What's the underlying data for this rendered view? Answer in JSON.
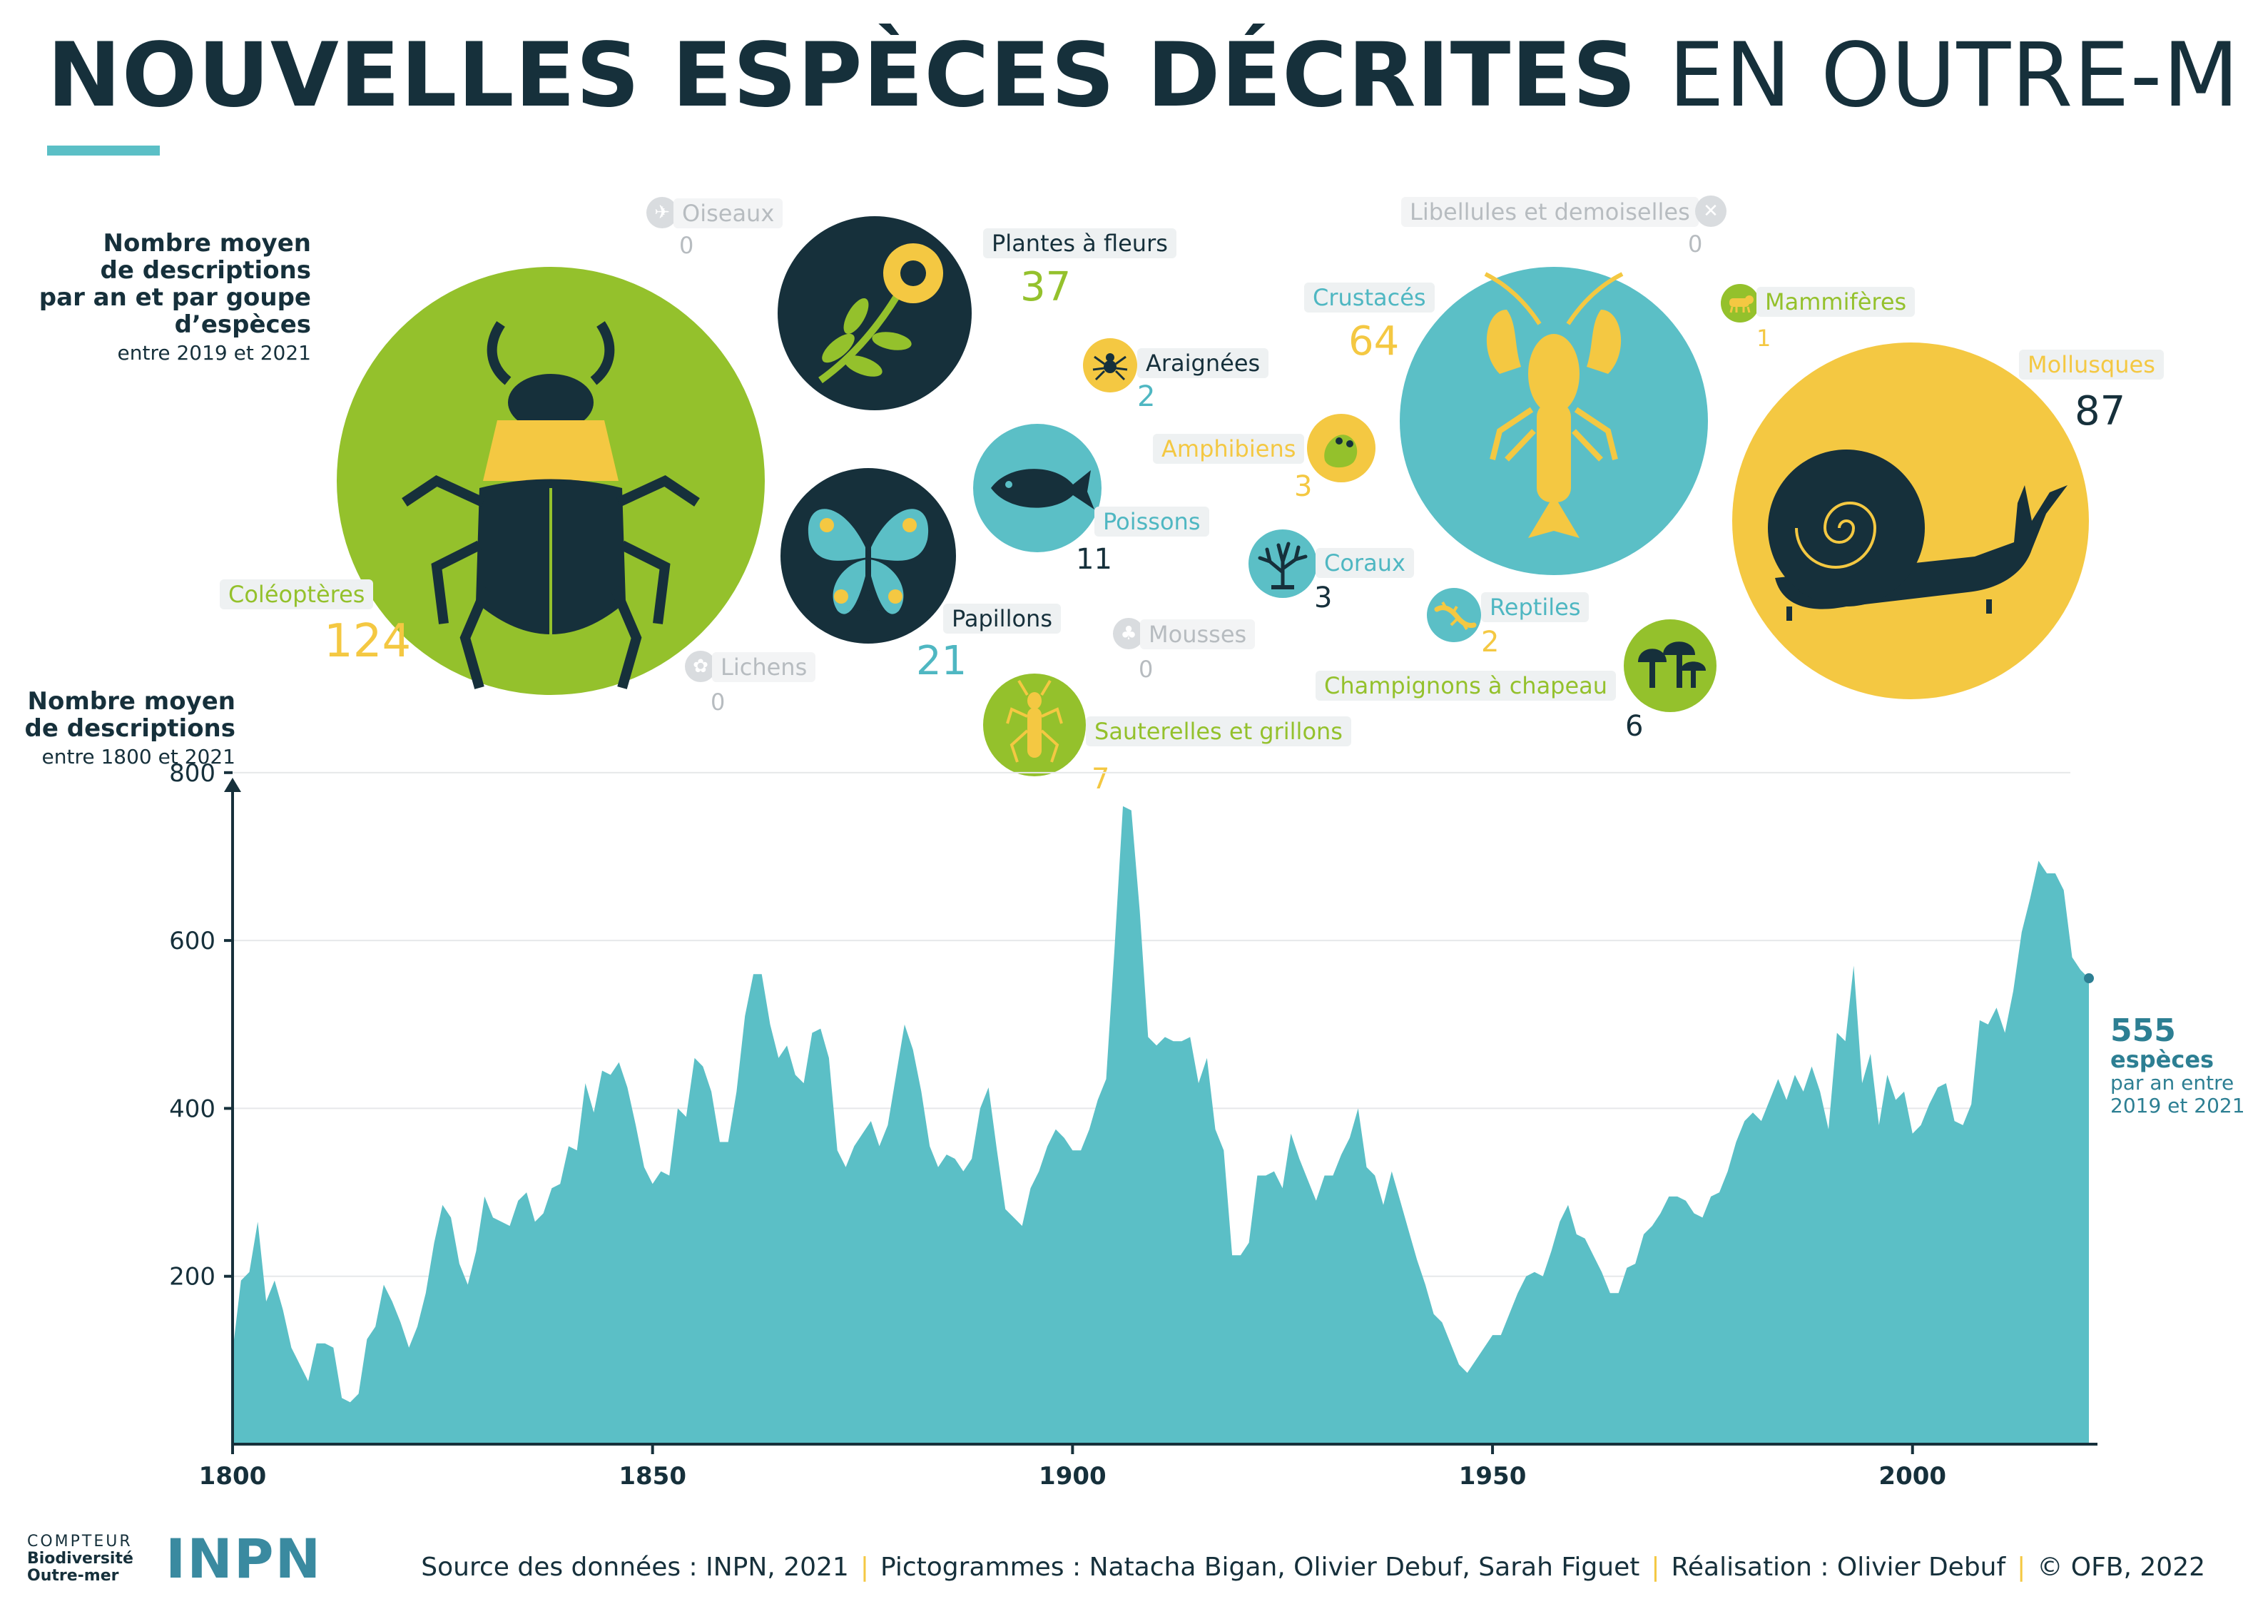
{
  "title": {
    "bold": "NOUVELLES ESPÈCES DÉCRITES",
    "light": "EN OUTRE-MER"
  },
  "bubbles_note": {
    "lines": [
      "Nombre moyen",
      "de descriptions",
      "par an et par goupe",
      "d’espèces"
    ],
    "sub": "entre 2019 et 2021"
  },
  "groups": [
    {
      "name": "Coléoptères",
      "value": "124"
    },
    {
      "name": "Plantes à fleurs",
      "value": "37"
    },
    {
      "name": "Papillons",
      "value": "21"
    },
    {
      "name": "Poissons",
      "value": "11"
    },
    {
      "name": "Araignées",
      "value": "2"
    },
    {
      "name": "Amphibiens",
      "value": "3"
    },
    {
      "name": "Coraux",
      "value": "3"
    },
    {
      "name": "Sauterelles et grillons",
      "value": "7"
    },
    {
      "name": "Oiseaux",
      "value": "0"
    },
    {
      "name": "Lichens",
      "value": "0"
    },
    {
      "name": "Mousses",
      "value": "0"
    },
    {
      "name": "Crustacés",
      "value": "64"
    },
    {
      "name": "Libellules et demoiselles",
      "value": "0"
    },
    {
      "name": "Mammifères",
      "value": "1"
    },
    {
      "name": "Mollusques",
      "value": "87"
    },
    {
      "name": "Reptiles",
      "value": "2"
    },
    {
      "name": "Champignons à chapeau",
      "value": "6"
    }
  ],
  "colors": {
    "green": "#94c12c",
    "yellow": "#f4c842",
    "teal": "#5bbfc6",
    "dark": "#16303b",
    "grey": "#d9dcdf"
  },
  "icons": [
    "beetle-icon",
    "flower-icon",
    "butterfly-icon",
    "fish-icon",
    "spider-icon",
    "frog-icon",
    "coral-icon",
    "grasshopper-icon",
    "bird-icon",
    "lichen-icon",
    "moss-icon",
    "crayfish-icon",
    "dragonfly-icon",
    "mammal-icon",
    "snail-icon",
    "lizard-icon",
    "mushroom-icon"
  ],
  "chart_note": {
    "lines": [
      "Nombre moyen",
      "de descriptions"
    ],
    "sub": "entre 1800 et 2021"
  },
  "callout": {
    "value": "555",
    "unit": "espèces",
    "sub1": "par an entre",
    "sub2": "2019 et 2021"
  },
  "chart_data": {
    "type": "area",
    "title": "",
    "xlabel": "",
    "ylabel": "Nombre moyen de descriptions",
    "xlim": [
      1800,
      2021
    ],
    "ylim": [
      0,
      850
    ],
    "x_ticks": [
      "1800",
      "1850",
      "1900",
      "1950",
      "2000"
    ],
    "y_ticks": [
      "200",
      "400",
      "600",
      "800"
    ],
    "grid": "horizontal",
    "series": [
      {
        "color": "#5bbfc6",
        "points": [
          [
            1800,
            110
          ],
          [
            1801,
            195
          ],
          [
            1802,
            205
          ],
          [
            1803,
            265
          ],
          [
            1804,
            170
          ],
          [
            1805,
            195
          ],
          [
            1806,
            160
          ],
          [
            1807,
            115
          ],
          [
            1808,
            95
          ],
          [
            1809,
            75
          ],
          [
            1810,
            120
          ],
          [
            1811,
            120
          ],
          [
            1812,
            115
          ],
          [
            1813,
            55
          ],
          [
            1814,
            50
          ],
          [
            1815,
            60
          ],
          [
            1816,
            125
          ],
          [
            1817,
            140
          ],
          [
            1818,
            190
          ],
          [
            1819,
            170
          ],
          [
            1820,
            145
          ],
          [
            1821,
            115
          ],
          [
            1822,
            140
          ],
          [
            1823,
            180
          ],
          [
            1824,
            240
          ],
          [
            1825,
            285
          ],
          [
            1826,
            270
          ],
          [
            1827,
            215
          ],
          [
            1828,
            190
          ],
          [
            1829,
            230
          ],
          [
            1830,
            295
          ],
          [
            1831,
            270
          ],
          [
            1832,
            265
          ],
          [
            1833,
            260
          ],
          [
            1834,
            290
          ],
          [
            1835,
            300
          ],
          [
            1836,
            265
          ],
          [
            1837,
            275
          ],
          [
            1838,
            305
          ],
          [
            1839,
            310
          ],
          [
            1840,
            355
          ],
          [
            1841,
            350
          ],
          [
            1842,
            430
          ],
          [
            1843,
            395
          ],
          [
            1844,
            445
          ],
          [
            1845,
            440
          ],
          [
            1846,
            455
          ],
          [
            1847,
            425
          ],
          [
            1848,
            380
          ],
          [
            1849,
            330
          ],
          [
            1850,
            310
          ],
          [
            1851,
            325
          ],
          [
            1852,
            320
          ],
          [
            1853,
            400
          ],
          [
            1854,
            390
          ],
          [
            1855,
            460
          ],
          [
            1856,
            450
          ],
          [
            1857,
            420
          ],
          [
            1858,
            360
          ],
          [
            1859,
            360
          ],
          [
            1860,
            420
          ],
          [
            1861,
            510
          ],
          [
            1862,
            560
          ],
          [
            1863,
            560
          ],
          [
            1864,
            500
          ],
          [
            1865,
            460
          ],
          [
            1866,
            475
          ],
          [
            1867,
            440
          ],
          [
            1868,
            430
          ],
          [
            1869,
            490
          ],
          [
            1870,
            495
          ],
          [
            1871,
            460
          ],
          [
            1872,
            350
          ],
          [
            1873,
            330
          ],
          [
            1874,
            355
          ],
          [
            1875,
            370
          ],
          [
            1876,
            385
          ],
          [
            1877,
            355
          ],
          [
            1878,
            380
          ],
          [
            1879,
            440
          ],
          [
            1880,
            500
          ],
          [
            1881,
            470
          ],
          [
            1882,
            420
          ],
          [
            1883,
            355
          ],
          [
            1884,
            330
          ],
          [
            1885,
            345
          ],
          [
            1886,
            340
          ],
          [
            1887,
            325
          ],
          [
            1888,
            340
          ],
          [
            1889,
            400
          ],
          [
            1890,
            425
          ],
          [
            1891,
            350
          ],
          [
            1892,
            280
          ],
          [
            1893,
            270
          ],
          [
            1894,
            260
          ],
          [
            1895,
            305
          ],
          [
            1896,
            325
          ],
          [
            1897,
            355
          ],
          [
            1898,
            375
          ],
          [
            1899,
            365
          ],
          [
            1900,
            350
          ],
          [
            1901,
            350
          ],
          [
            1902,
            375
          ],
          [
            1903,
            410
          ],
          [
            1904,
            435
          ],
          [
            1905,
            590
          ],
          [
            1906,
            760
          ],
          [
            1907,
            755
          ],
          [
            1908,
            635
          ],
          [
            1909,
            485
          ],
          [
            1910,
            475
          ],
          [
            1911,
            485
          ],
          [
            1912,
            480
          ],
          [
            1913,
            480
          ],
          [
            1914,
            485
          ],
          [
            1915,
            430
          ],
          [
            1916,
            460
          ],
          [
            1917,
            375
          ],
          [
            1918,
            350
          ],
          [
            1919,
            225
          ],
          [
            1920,
            225
          ],
          [
            1921,
            240
          ],
          [
            1922,
            320
          ],
          [
            1923,
            320
          ],
          [
            1924,
            325
          ],
          [
            1925,
            305
          ],
          [
            1926,
            370
          ],
          [
            1927,
            340
          ],
          [
            1928,
            315
          ],
          [
            1929,
            290
          ],
          [
            1930,
            320
          ],
          [
            1931,
            320
          ],
          [
            1932,
            345
          ],
          [
            1933,
            365
          ],
          [
            1934,
            400
          ],
          [
            1935,
            330
          ],
          [
            1936,
            320
          ],
          [
            1937,
            285
          ],
          [
            1938,
            325
          ],
          [
            1939,
            290
          ],
          [
            1940,
            255
          ],
          [
            1941,
            220
          ],
          [
            1942,
            190
          ],
          [
            1943,
            155
          ],
          [
            1944,
            145
          ],
          [
            1945,
            120
          ],
          [
            1946,
            95
          ],
          [
            1947,
            85
          ],
          [
            1948,
            100
          ],
          [
            1949,
            115
          ],
          [
            1950,
            130
          ],
          [
            1951,
            130
          ],
          [
            1952,
            155
          ],
          [
            1953,
            180
          ],
          [
            1954,
            200
          ],
          [
            1955,
            205
          ],
          [
            1956,
            200
          ],
          [
            1957,
            230
          ],
          [
            1958,
            265
          ],
          [
            1959,
            285
          ],
          [
            1960,
            250
          ],
          [
            1961,
            245
          ],
          [
            1962,
            225
          ],
          [
            1963,
            205
          ],
          [
            1964,
            180
          ],
          [
            1965,
            180
          ],
          [
            1966,
            210
          ],
          [
            1967,
            215
          ],
          [
            1968,
            250
          ],
          [
            1969,
            260
          ],
          [
            1970,
            275
          ],
          [
            1971,
            295
          ],
          [
            1972,
            295
          ],
          [
            1973,
            290
          ],
          [
            1974,
            275
          ],
          [
            1975,
            270
          ],
          [
            1976,
            295
          ],
          [
            1977,
            300
          ],
          [
            1978,
            325
          ],
          [
            1979,
            360
          ],
          [
            1980,
            385
          ],
          [
            1981,
            395
          ],
          [
            1982,
            385
          ],
          [
            1983,
            410
          ],
          [
            1984,
            435
          ],
          [
            1985,
            410
          ],
          [
            1986,
            440
          ],
          [
            1987,
            420
          ],
          [
            1988,
            450
          ],
          [
            1989,
            420
          ],
          [
            1990,
            375
          ],
          [
            1991,
            490
          ],
          [
            1992,
            480
          ],
          [
            1993,
            570
          ],
          [
            1994,
            430
          ],
          [
            1995,
            465
          ],
          [
            1996,
            380
          ],
          [
            1997,
            440
          ],
          [
            1998,
            410
          ],
          [
            1999,
            420
          ],
          [
            2000,
            370
          ],
          [
            2001,
            380
          ],
          [
            2002,
            405
          ],
          [
            2003,
            425
          ],
          [
            2004,
            430
          ],
          [
            2005,
            385
          ],
          [
            2006,
            380
          ],
          [
            2007,
            405
          ],
          [
            2008,
            505
          ],
          [
            2009,
            500
          ],
          [
            2010,
            520
          ],
          [
            2011,
            490
          ],
          [
            2012,
            540
          ],
          [
            2013,
            610
          ],
          [
            2014,
            650
          ],
          [
            2015,
            695
          ],
          [
            2016,
            680
          ],
          [
            2017,
            680
          ],
          [
            2018,
            660
          ],
          [
            2019,
            580
          ],
          [
            2020,
            565
          ],
          [
            2021,
            555
          ]
        ]
      }
    ]
  },
  "footer": {
    "logo1": [
      "COMPTEUR",
      "Biodiversité",
      "Outre-mer"
    ],
    "logo2": "INPN",
    "credits": [
      "Source des données : INPN, 2021",
      "Pictogrammes : Natacha Bigan, Olivier Debuf, Sarah Figuet",
      "Réalisation : Olivier Debuf",
      "© OFB, 2022"
    ]
  }
}
